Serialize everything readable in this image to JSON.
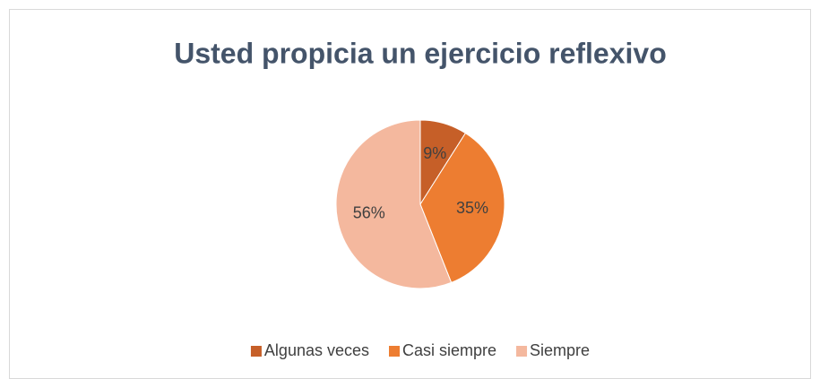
{
  "chart_data": {
    "type": "pie",
    "title": "Usted propicia un ejercicio reflexivo",
    "categories": [
      "Algunas veces",
      "Casi siempre",
      "Siempre"
    ],
    "values": [
      9,
      35,
      56
    ],
    "value_labels": [
      "9%",
      "35%",
      "56%"
    ],
    "colors": [
      "#c65f28",
      "#ed7d31",
      "#f4b89e"
    ],
    "legend": "bottom"
  }
}
